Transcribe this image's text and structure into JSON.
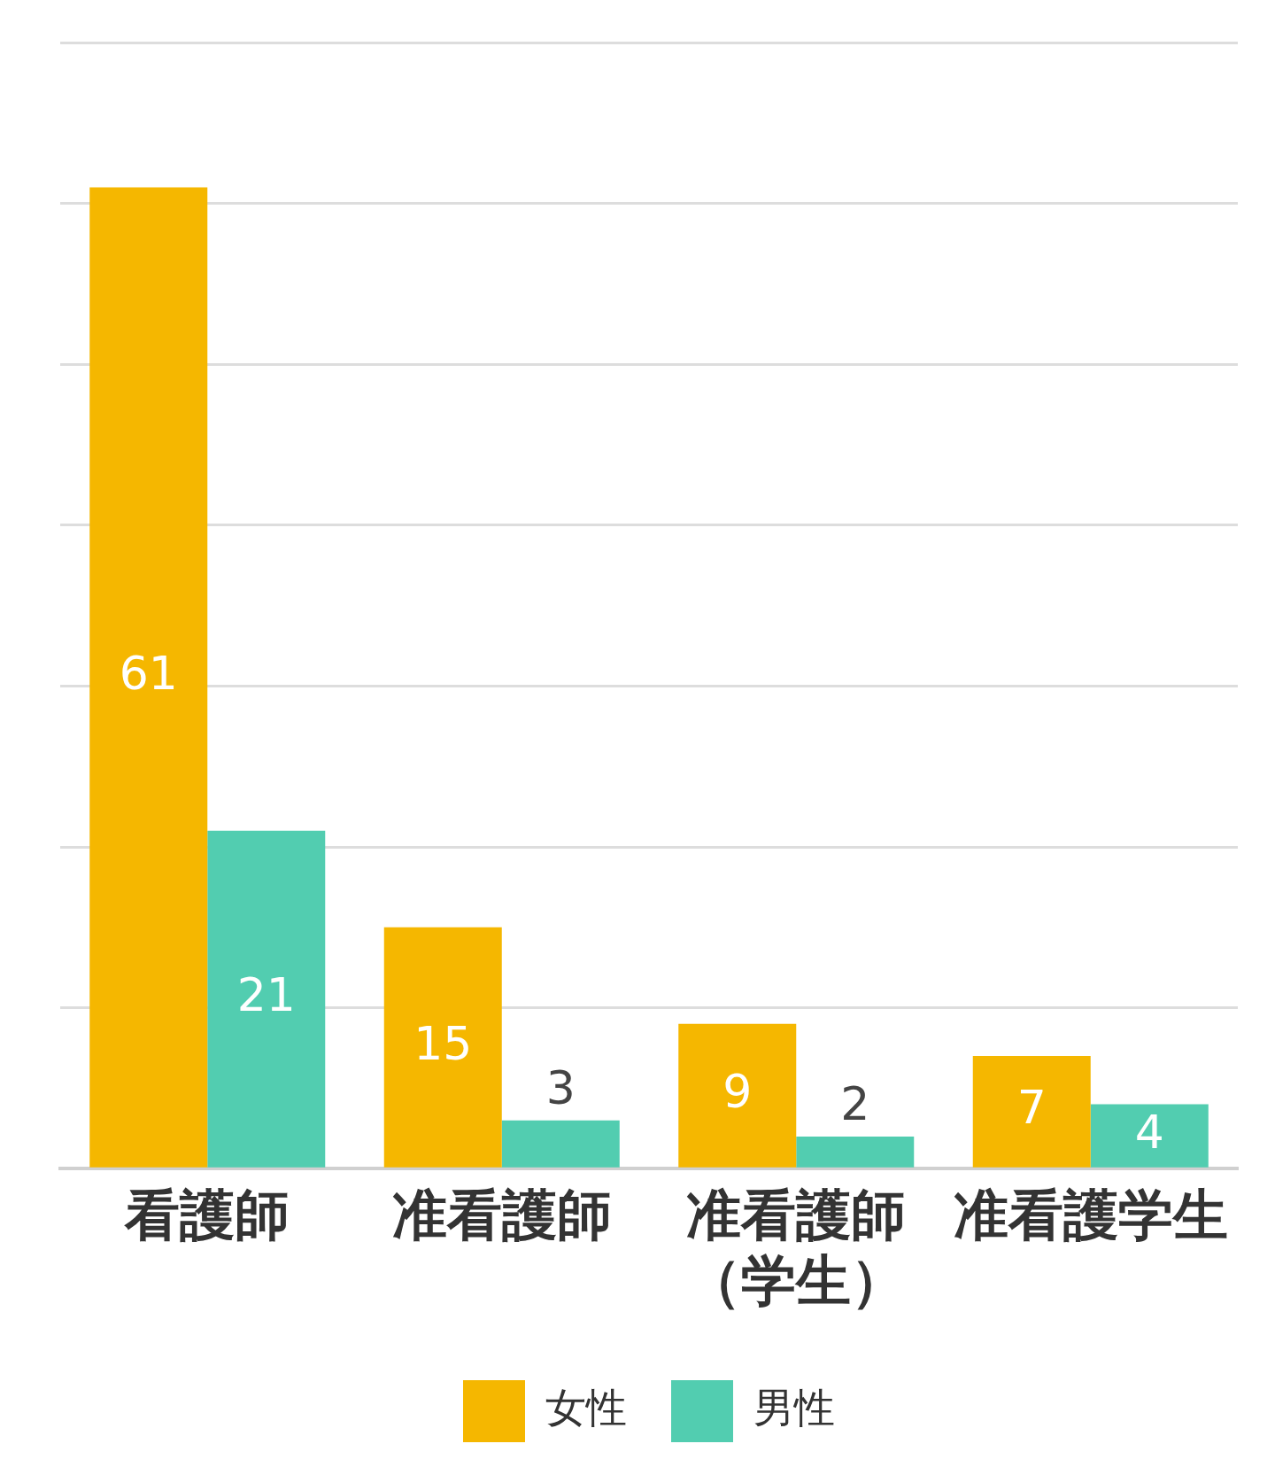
{
  "chart_data": {
    "type": "bar",
    "categories": [
      "看護師",
      "准看護師",
      "准看護師（学生）",
      "准看護学生"
    ],
    "series": [
      {
        "name": "女性",
        "color": "#f5b700",
        "values": [
          61,
          15,
          9,
          7
        ]
      },
      {
        "name": "男性",
        "color": "#52cdb0",
        "values": [
          21,
          3,
          2,
          4
        ]
      }
    ],
    "ylim": [
      0,
      70
    ],
    "yticks": [
      {
        "value": 0,
        "label": null
      },
      {
        "value": 10,
        "label": null
      },
      {
        "value": 20,
        "label": null
      },
      {
        "value": 30,
        "label": null
      },
      {
        "value": 40,
        "label": null
      },
      {
        "value": 50,
        "label": null
      },
      {
        "value": 60,
        "label": null
      },
      {
        "value": 70,
        "label": null
      }
    ],
    "grid": "y",
    "tick_labels": "x",
    "data_labels": true,
    "legend": "bottom"
  }
}
